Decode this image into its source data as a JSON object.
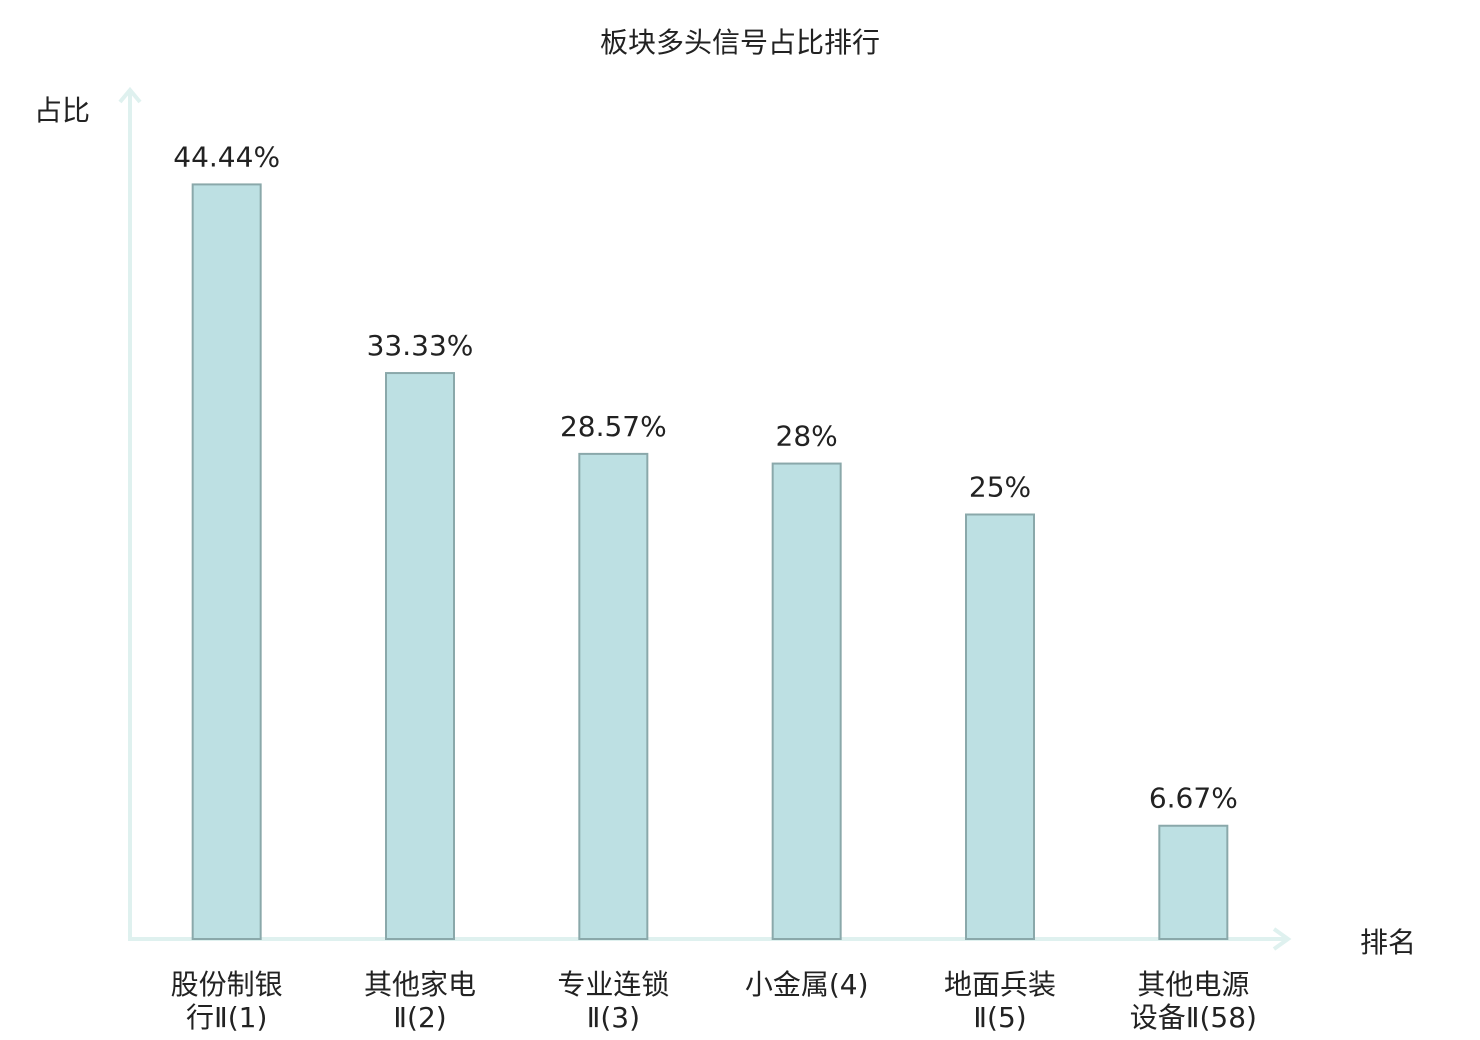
{
  "chart_data": {
    "type": "bar",
    "title": "板块多头信号占比排行",
    "y_label": "占比",
    "x_label": "排名",
    "categories": [
      "股份制银行Ⅱ(1)",
      "其他家电Ⅱ(2)",
      "专业连锁Ⅱ(3)",
      "小金属(4)",
      "地面兵装Ⅱ(5)",
      "其他电源设备Ⅱ(58)"
    ],
    "values": [
      44.44,
      33.33,
      28.57,
      28,
      25,
      6.67
    ],
    "value_labels": [
      "44.44%",
      "33.33%",
      "28.57%",
      "28%",
      "25%",
      "6.67%"
    ],
    "color": "#bde0e3",
    "edge_color": "#8aa8aa",
    "category_label_colors": [
      "#222222",
      "#222222",
      "#222222",
      "#222222",
      "#222222",
      "#e00000"
    ],
    "ylim": [
      0,
      50
    ]
  }
}
